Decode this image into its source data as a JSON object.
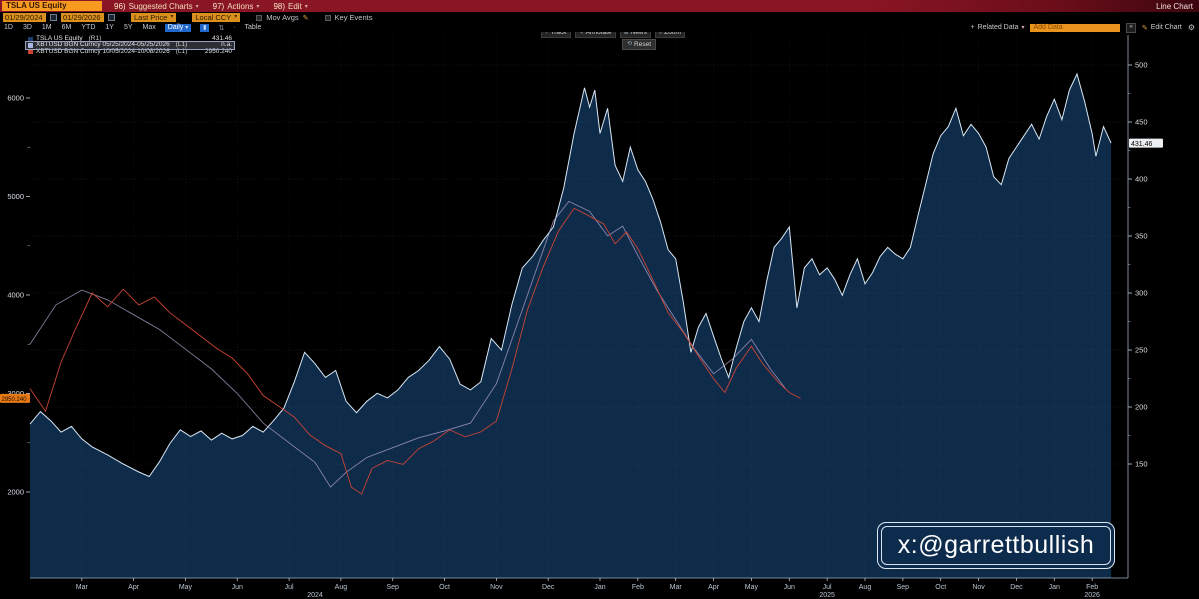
{
  "titlebar": {
    "ticker": "TSLA US Equity",
    "menus": [
      {
        "num": "96)",
        "label": "Suggested Charts"
      },
      {
        "num": "97)",
        "label": "Actions"
      },
      {
        "num": "98)",
        "label": "Edit"
      }
    ],
    "right_label": "Line Chart"
  },
  "toolbar": {
    "date_from": "01/29/2024",
    "date_to": "01/29/2026",
    "field_price": "Last Price",
    "field_currency": "Local CCY",
    "mov_avgs_label": "Mov Avgs",
    "key_events_label": "Key Events"
  },
  "range_bar": {
    "periods": [
      "1D",
      "3D",
      "1M",
      "6M",
      "YTD",
      "1Y",
      "5Y",
      "Max"
    ],
    "frequency": "Daily",
    "table_label": "Table",
    "related_data_label": "Related Data",
    "add_data_placeholder": "Add Data",
    "collapse_label": "«",
    "edit_chart_label": "Edit Chart"
  },
  "chart_tools": {
    "buttons": [
      {
        "icon": "+",
        "label": "Track"
      },
      {
        "icon": "✎",
        "label": "Annotate"
      },
      {
        "icon": "≣",
        "label": "News"
      },
      {
        "icon": "⌕",
        "label": "Zoom"
      }
    ],
    "reset_label": "Reset"
  },
  "legend": {
    "title": "Last Price",
    "items": [
      {
        "label": "TSLA US Equity",
        "scale": "(R1)",
        "value": "431.46",
        "color": "#1d3f73",
        "selected": false
      },
      {
        "label": "XBTUSD BGN Curncy 05/25/2024-05/25/2026",
        "scale": "(L1)",
        "value": "n.a.",
        "color": "#a9b7e6",
        "selected": true
      },
      {
        "label": "XBTUSD BGN Curncy 10/05/2024-10/08/2026",
        "scale": "(L1)",
        "value": "2950.240",
        "color": "#cc4333",
        "selected": false
      }
    ]
  },
  "watermark": "x:@garrettbullish",
  "chart_data": {
    "type": "line",
    "title": "Last Price",
    "x_start": "01/29/2024",
    "x_end": "01/29/2026",
    "months": [
      "Mar",
      "Apr",
      "May",
      "Jun",
      "Jul",
      "Aug",
      "Sep",
      "Oct",
      "Nov",
      "Dec",
      "Jan",
      "Feb",
      "Mar",
      "Apr",
      "May",
      "Jun",
      "Jul",
      "Aug",
      "Sep",
      "Oct",
      "Nov",
      "Dec",
      "Jan",
      "Feb"
    ],
    "years": [
      {
        "label": "2024",
        "m": 5.5
      },
      {
        "label": "2025",
        "m": 17
      },
      {
        "label": "2026",
        "m": 24
      }
    ],
    "right_axis": {
      "series": "TSLA US Equity",
      "ticks": [
        150,
        200,
        250,
        300,
        350,
        400,
        450,
        500
      ],
      "range": [
        150,
        500
      ],
      "last_value": "431.46"
    },
    "left_axis": {
      "series": "XBTUSD BGN Curncy",
      "ticks": [
        2000,
        3000,
        4000,
        5000,
        6000
      ],
      "range": [
        2000,
        6000
      ],
      "last_value": "2950.240"
    },
    "grid": true,
    "series": [
      {
        "name": "TSLA US Equity",
        "axis": "right",
        "style": "area",
        "fill": "#0e2b4a",
        "stroke": "#d7e7f4",
        "points": [
          [
            0,
            185
          ],
          [
            0.2,
            196
          ],
          [
            0.4,
            188
          ],
          [
            0.6,
            178
          ],
          [
            0.8,
            183
          ],
          [
            1,
            172
          ],
          [
            1.2,
            165
          ],
          [
            1.5,
            158
          ],
          [
            1.8,
            150
          ],
          [
            2.1,
            143
          ],
          [
            2.3,
            139
          ],
          [
            2.5,
            152
          ],
          [
            2.7,
            168
          ],
          [
            2.9,
            180
          ],
          [
            3.1,
            174
          ],
          [
            3.3,
            179
          ],
          [
            3.5,
            171
          ],
          [
            3.7,
            177
          ],
          [
            3.9,
            172
          ],
          [
            4.1,
            175
          ],
          [
            4.3,
            183
          ],
          [
            4.5,
            178
          ],
          [
            4.7,
            188
          ],
          [
            4.9,
            199
          ],
          [
            5.1,
            222
          ],
          [
            5.3,
            248
          ],
          [
            5.5,
            238
          ],
          [
            5.7,
            226
          ],
          [
            5.9,
            232
          ],
          [
            6.1,
            205
          ],
          [
            6.3,
            195
          ],
          [
            6.5,
            205
          ],
          [
            6.7,
            212
          ],
          [
            6.9,
            208
          ],
          [
            7.1,
            215
          ],
          [
            7.3,
            226
          ],
          [
            7.5,
            232
          ],
          [
            7.7,
            241
          ],
          [
            7.9,
            253
          ],
          [
            8.1,
            242
          ],
          [
            8.3,
            220
          ],
          [
            8.5,
            215
          ],
          [
            8.7,
            222
          ],
          [
            8.9,
            260
          ],
          [
            9.1,
            250
          ],
          [
            9.3,
            290
          ],
          [
            9.5,
            322
          ],
          [
            9.7,
            332
          ],
          [
            9.9,
            346
          ],
          [
            10.1,
            358
          ],
          [
            10.3,
            392
          ],
          [
            10.5,
            440
          ],
          [
            10.7,
            480
          ],
          [
            10.8,
            463
          ],
          [
            10.9,
            478
          ],
          [
            11,
            440
          ],
          [
            11.2,
            462
          ],
          [
            11.4,
            412
          ],
          [
            11.6,
            398
          ],
          [
            11.8,
            428
          ],
          [
            12,
            408
          ],
          [
            12.2,
            398
          ],
          [
            12.4,
            382
          ],
          [
            12.6,
            362
          ],
          [
            12.8,
            338
          ],
          [
            13,
            330
          ],
          [
            13.2,
            292
          ],
          [
            13.4,
            248
          ],
          [
            13.6,
            270
          ],
          [
            13.8,
            282
          ],
          [
            14,
            262
          ],
          [
            14.2,
            243
          ],
          [
            14.4,
            226
          ],
          [
            14.6,
            252
          ],
          [
            14.8,
            275
          ],
          [
            15,
            287
          ],
          [
            15.2,
            275
          ],
          [
            15.4,
            310
          ],
          [
            15.6,
            340
          ],
          [
            15.8,
            348
          ],
          [
            16,
            358
          ],
          [
            16.2,
            287
          ],
          [
            16.4,
            322
          ],
          [
            16.6,
            330
          ],
          [
            16.8,
            316
          ],
          [
            17,
            322
          ],
          [
            17.2,
            312
          ],
          [
            17.4,
            298
          ],
          [
            17.6,
            316
          ],
          [
            17.8,
            330
          ],
          [
            18,
            308
          ],
          [
            18.2,
            318
          ],
          [
            18.4,
            332
          ],
          [
            18.6,
            340
          ],
          [
            18.8,
            334
          ],
          [
            19,
            330
          ],
          [
            19.2,
            340
          ],
          [
            19.4,
            368
          ],
          [
            19.6,
            395
          ],
          [
            19.8,
            422
          ],
          [
            20,
            438
          ],
          [
            20.2,
            446
          ],
          [
            20.4,
            462
          ],
          [
            20.6,
            438
          ],
          [
            20.8,
            448
          ],
          [
            21,
            440
          ],
          [
            21.2,
            428
          ],
          [
            21.4,
            402
          ],
          [
            21.6,
            395
          ],
          [
            21.8,
            418
          ],
          [
            22,
            428
          ],
          [
            22.2,
            438
          ],
          [
            22.4,
            448
          ],
          [
            22.6,
            435
          ],
          [
            22.8,
            455
          ],
          [
            23,
            470
          ],
          [
            23.2,
            452
          ],
          [
            23.4,
            478
          ],
          [
            23.6,
            492
          ],
          [
            23.8,
            468
          ],
          [
            24,
            440
          ],
          [
            24.1,
            420
          ],
          [
            24.3,
            446
          ],
          [
            24.5,
            431.46
          ]
        ]
      },
      {
        "name": "XBTUSD BGN Curncy 05/25/2024-05/25/2026",
        "axis": "left",
        "style": "line",
        "stroke": "#c0aed8",
        "points": [
          [
            0,
            3500
          ],
          [
            0.5,
            3900
          ],
          [
            1,
            4050
          ],
          [
            1.5,
            3950
          ],
          [
            2,
            3800
          ],
          [
            2.5,
            3650
          ],
          [
            3,
            3450
          ],
          [
            3.5,
            3250
          ],
          [
            4,
            3000
          ],
          [
            4.5,
            2700
          ],
          [
            5,
            2500
          ],
          [
            5.5,
            2300
          ],
          [
            5.8,
            2050
          ],
          [
            6.1,
            2200
          ],
          [
            6.5,
            2350
          ],
          [
            7,
            2450
          ],
          [
            7.5,
            2550
          ],
          [
            8,
            2620
          ],
          [
            8.5,
            2700
          ],
          [
            9,
            3100
          ],
          [
            9.4,
            3700
          ],
          [
            9.8,
            4300
          ],
          [
            10.1,
            4750
          ],
          [
            10.4,
            4950
          ],
          [
            10.8,
            4850
          ],
          [
            11.2,
            4600
          ],
          [
            11.6,
            4700
          ],
          [
            12,
            4400
          ],
          [
            12.5,
            4050
          ],
          [
            13,
            3750
          ],
          [
            13.5,
            3450
          ],
          [
            14,
            3200
          ],
          [
            14.5,
            3350
          ],
          [
            15,
            3550
          ],
          [
            15.5,
            3250
          ],
          [
            15.9,
            3050
          ]
        ]
      },
      {
        "name": "XBTUSD BGN Curncy 10/05/2024-10/08/2026",
        "axis": "left",
        "style": "line",
        "stroke": "#cb4434",
        "points": [
          [
            0,
            3050
          ],
          [
            0.3,
            2820
          ],
          [
            0.6,
            3320
          ],
          [
            0.9,
            3680
          ],
          [
            1.2,
            4020
          ],
          [
            1.5,
            3880
          ],
          [
            1.8,
            4060
          ],
          [
            2.1,
            3900
          ],
          [
            2.4,
            3980
          ],
          [
            2.7,
            3820
          ],
          [
            3,
            3700
          ],
          [
            3.3,
            3580
          ],
          [
            3.6,
            3460
          ],
          [
            3.9,
            3360
          ],
          [
            4.2,
            3200
          ],
          [
            4.5,
            2980
          ],
          [
            4.8,
            2870
          ],
          [
            5.1,
            2760
          ],
          [
            5.4,
            2580
          ],
          [
            5.7,
            2470
          ],
          [
            6,
            2390
          ],
          [
            6.2,
            2050
          ],
          [
            6.4,
            1980
          ],
          [
            6.6,
            2240
          ],
          [
            6.9,
            2320
          ],
          [
            7.2,
            2280
          ],
          [
            7.5,
            2440
          ],
          [
            7.8,
            2520
          ],
          [
            8.1,
            2630
          ],
          [
            8.4,
            2560
          ],
          [
            8.7,
            2610
          ],
          [
            9,
            2720
          ],
          [
            9.3,
            3250
          ],
          [
            9.6,
            3850
          ],
          [
            9.9,
            4280
          ],
          [
            10.2,
            4650
          ],
          [
            10.5,
            4880
          ],
          [
            10.8,
            4800
          ],
          [
            11.1,
            4720
          ],
          [
            11.4,
            4520
          ],
          [
            11.7,
            4640
          ],
          [
            12,
            4470
          ],
          [
            12.4,
            4150
          ],
          [
            12.8,
            3820
          ],
          [
            13.2,
            3620
          ],
          [
            13.6,
            3380
          ],
          [
            14,
            3150
          ],
          [
            14.3,
            3010
          ],
          [
            14.6,
            3260
          ],
          [
            15,
            3480
          ],
          [
            15.3,
            3300
          ],
          [
            15.7,
            3120
          ],
          [
            16,
            3010
          ],
          [
            16.3,
            2950.24
          ]
        ]
      }
    ]
  }
}
